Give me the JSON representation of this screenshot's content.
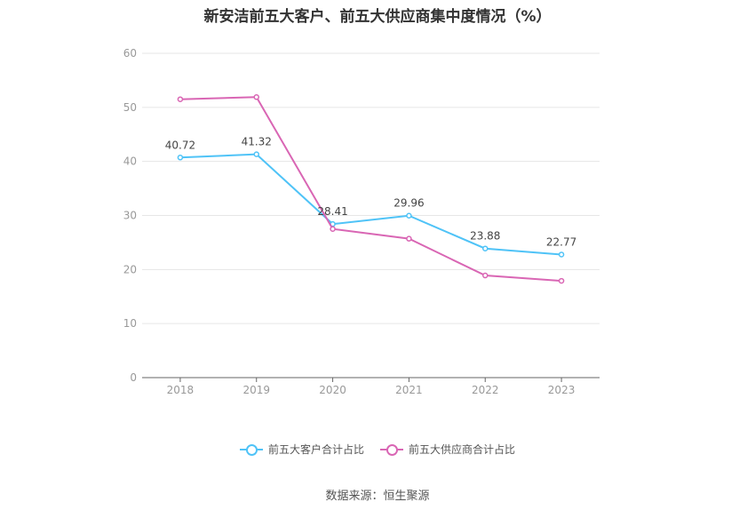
{
  "chart_data": {
    "type": "line",
    "title": "新安洁前五大客户、前五大供应商集中度情况（%）",
    "categories": [
      "2018",
      "2019",
      "2020",
      "2021",
      "2022",
      "2023"
    ],
    "ylim": [
      0,
      60
    ],
    "yticks": [
      "0",
      "10",
      "20",
      "30",
      "40",
      "50",
      "60"
    ],
    "grid": true,
    "legend_position": "bottom",
    "series": [
      {
        "name": "前五大客户合计占比",
        "color": "#4fc3f7",
        "values": [
          40.72,
          41.32,
          28.41,
          29.96,
          23.88,
          22.77
        ],
        "labels": [
          "40.72",
          "41.32",
          "28.41",
          "29.96",
          "23.88",
          "22.77"
        ]
      },
      {
        "name": "前五大供应商合计占比",
        "color": "#d966b4",
        "values": [
          51.5,
          51.9,
          27.5,
          25.7,
          18.9,
          17.9
        ]
      }
    ]
  },
  "source": "数据来源：恒生聚源"
}
